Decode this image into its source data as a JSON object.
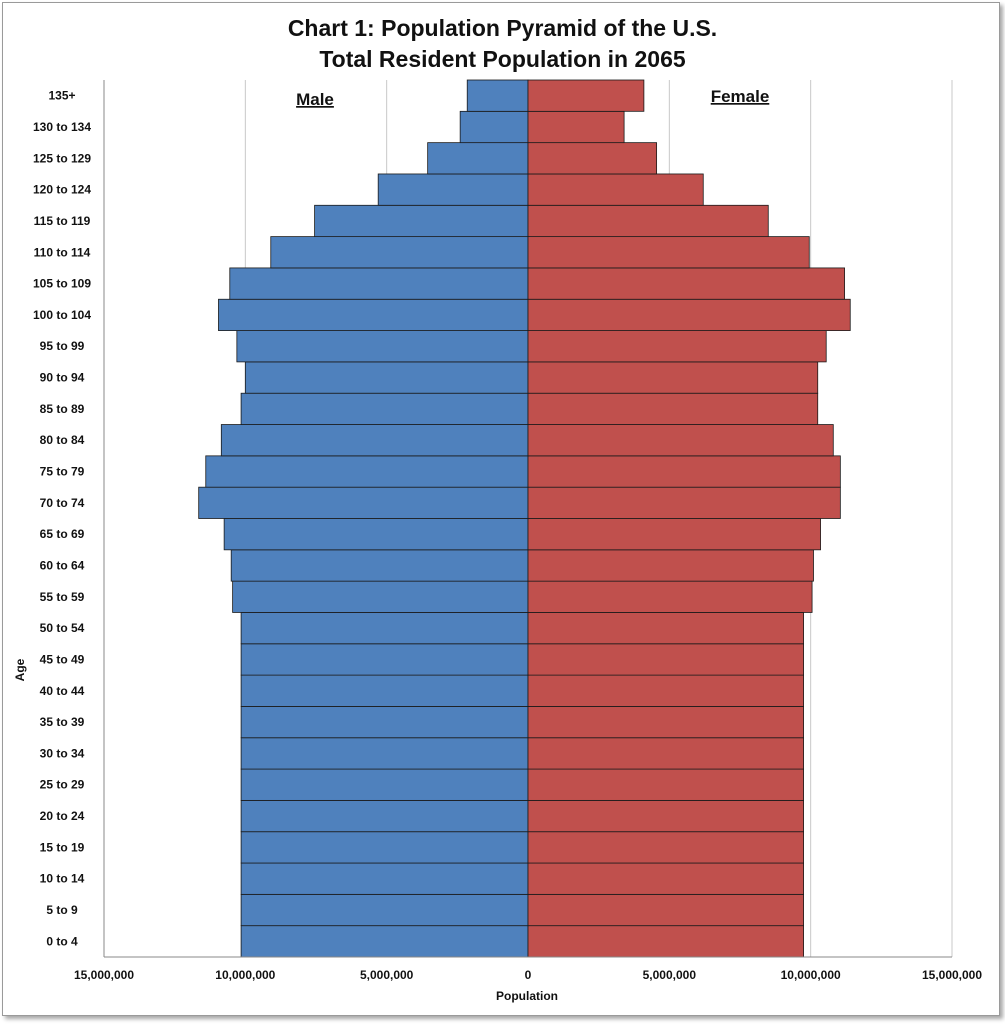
{
  "title_line1": "Chart 1: Population Pyramid of the U.S.",
  "title_line2": "Total Resident Population in 2065",
  "chart_data": {
    "type": "bar",
    "orientation": "horizontal",
    "title": "Chart 1: Population Pyramid of the U.S. Total Resident Population in 2065",
    "xlabel": "Population",
    "ylabel": "Age",
    "xlim": [
      -15000000,
      15000000
    ],
    "x_ticks": [
      -15000000,
      -10000000,
      -5000000,
      0,
      5000000,
      10000000,
      15000000
    ],
    "x_tick_labels": [
      "15,000,000",
      "10,000,000",
      "5,000,000",
      "0",
      "5,000,000",
      "10,000,000",
      "15,000,000"
    ],
    "grid": "vertical",
    "categories": [
      "0 to 4",
      "5 to 9",
      "10 to 14",
      "15 to 19",
      "20 to 24",
      "25 to 29",
      "30 to 34",
      "35 to 39",
      "40 to 44",
      "45 to 49",
      "50 to 54",
      "55 to 59",
      "60 to 64",
      "65 to 69",
      "70 to 74",
      "75 to 79",
      "80 to 84",
      "85 to 89",
      "90 to 94",
      "95 to 99",
      "100 to 104",
      "105 to 109",
      "110 to 114",
      "115 to 119",
      "120 to 124",
      "125 to 129",
      "130 to 134",
      "135+"
    ],
    "series": [
      {
        "name": "Male",
        "color": "#4f81bd",
        "side": "left",
        "values": [
          10150000,
          10150000,
          10150000,
          10150000,
          10150000,
          10150000,
          10150000,
          10150000,
          10150000,
          10150000,
          10150000,
          10450000,
          10500000,
          10750000,
          11650000,
          11400000,
          10850000,
          10150000,
          10000000,
          10300000,
          10950000,
          10550000,
          9100000,
          7550000,
          5300000,
          3550000,
          2400000,
          2150000
        ]
      },
      {
        "name": "Female",
        "color": "#c0504d",
        "side": "right",
        "values": [
          9750000,
          9750000,
          9750000,
          9750000,
          9750000,
          9750000,
          9750000,
          9750000,
          9750000,
          9750000,
          9750000,
          10050000,
          10100000,
          10350000,
          11050000,
          11050000,
          10800000,
          10250000,
          10250000,
          10550000,
          11400000,
          11200000,
          9950000,
          8500000,
          6200000,
          4550000,
          3400000,
          4100000
        ]
      }
    ]
  }
}
